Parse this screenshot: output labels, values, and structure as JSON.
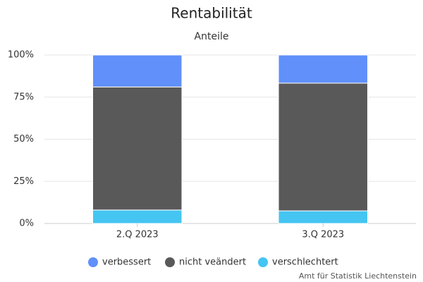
{
  "chart_data": {
    "type": "stacked_bar",
    "title": "Rentabilität",
    "subtitle": "Anteile",
    "categories": [
      "2.Q 2023",
      "3.Q 2023"
    ],
    "series": [
      {
        "name": "verbessert",
        "color": "#6190fa",
        "values": [
          19,
          16.7
        ]
      },
      {
        "name": "nicht veändert",
        "color": "#5a595a",
        "values": [
          73,
          75.8
        ]
      },
      {
        "name": "verschlechtert",
        "color": "#45c5f1",
        "values": [
          8,
          7.5
        ]
      }
    ],
    "ylim": [
      0,
      100
    ],
    "yticks": [
      {
        "value": 0,
        "label": "0%"
      },
      {
        "value": 25,
        "label": "25%"
      },
      {
        "value": 50,
        "label": "50%"
      },
      {
        "value": 75,
        "label": "75%"
      },
      {
        "value": 100,
        "label": "100%"
      }
    ],
    "grid": true,
    "legend": "bottom",
    "credit": "Amt für Statistik Liechtenstein"
  }
}
